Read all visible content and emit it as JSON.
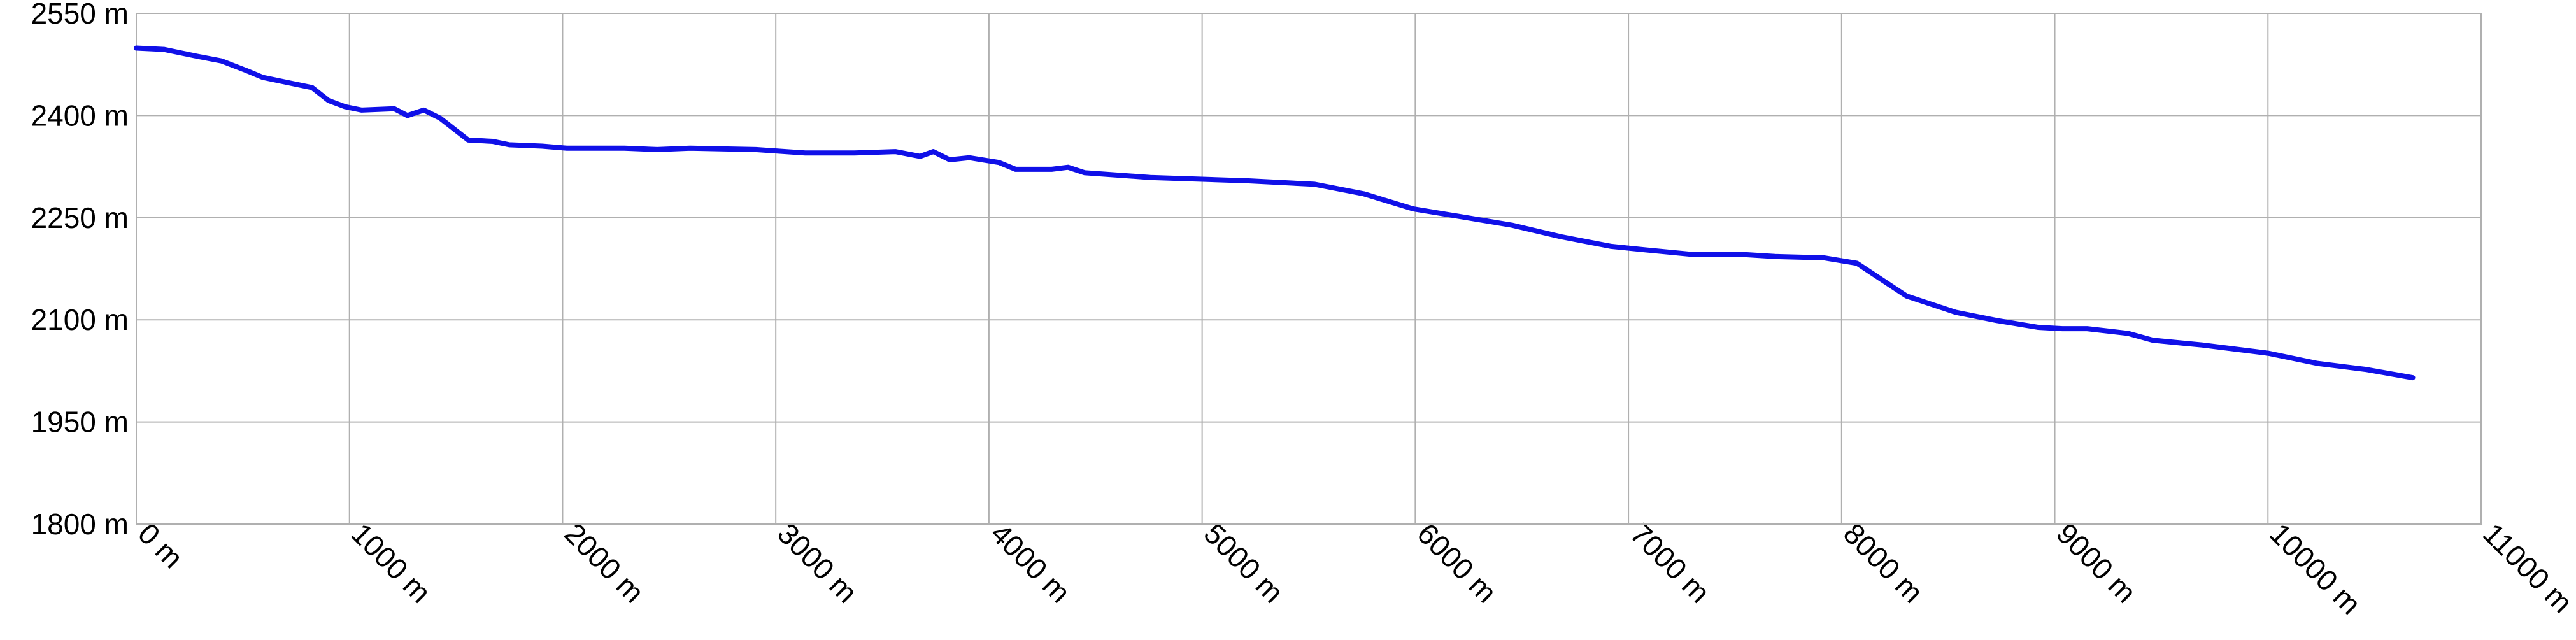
{
  "chart_data": {
    "type": "line",
    "x": [
      0,
      131,
      285,
      401,
      517,
      594,
      825,
      902,
      979,
      1056,
      1210,
      1272,
      1349,
      1426,
      1557,
      1673,
      1750,
      1904,
      2020,
      2290,
      2444,
      2598,
      2906,
      3138,
      3369,
      3561,
      3677,
      3739,
      3816,
      3908,
      4047,
      4125,
      4294,
      4371,
      4448,
      4757,
      5219,
      5528,
      5759,
      5990,
      6222,
      6453,
      6684,
      6916,
      7070,
      7301,
      7532,
      7687,
      7918,
      8072,
      8188,
      8304,
      8535,
      8728,
      8921,
      9036,
      9152,
      9345,
      9460,
      9692,
      10000,
      10232,
      10463,
      10679
    ],
    "series": [
      {
        "color": "#1010e8",
        "values": [
          2499,
          2497,
          2487,
          2480,
          2466,
          2456,
          2441,
          2422,
          2413,
          2408,
          2410,
          2400,
          2408,
          2396,
          2364,
          2362,
          2357,
          2355,
          2352,
          2352,
          2350,
          2352,
          2350,
          2345,
          2345,
          2347,
          2340,
          2347,
          2335,
          2338,
          2331,
          2321,
          2321,
          2324,
          2316,
          2309,
          2304,
          2299,
          2285,
          2263,
          2251,
          2239,
          2222,
          2208,
          2203,
          2196,
          2196,
          2193,
          2191,
          2183,
          2159,
          2135,
          2111,
          2099,
          2089,
          2087,
          2087,
          2080,
          2070,
          2063,
          2051,
          2036,
          2027,
          2015
        ]
      }
    ],
    "xlim": [
      0,
      11000
    ],
    "xticks": [
      {
        "value": 0,
        "label": "0 m"
      },
      {
        "value": 1000,
        "label": "1000 m"
      },
      {
        "value": 2000,
        "label": "2000 m"
      },
      {
        "value": 3000,
        "label": "3000 m"
      },
      {
        "value": 4000,
        "label": "4000 m"
      },
      {
        "value": 5000,
        "label": "5000 m"
      },
      {
        "value": 6000,
        "label": "6000 m"
      },
      {
        "value": 7000,
        "label": "7000 m"
      },
      {
        "value": 8000,
        "label": "8000 m"
      },
      {
        "value": 9000,
        "label": "9000 m"
      },
      {
        "value": 10000,
        "label": "10000 m"
      },
      {
        "value": 11000,
        "label": "11000 m"
      }
    ],
    "ylim": [
      1800,
      2550
    ],
    "yticks": [
      {
        "value": 1800,
        "label": "1800 m"
      },
      {
        "value": 1950,
        "label": "1950 m"
      },
      {
        "value": 2100,
        "label": "2100 m"
      },
      {
        "value": 2250,
        "label": "2250 m"
      },
      {
        "value": 2400,
        "label": "2400 m"
      },
      {
        "value": 2550,
        "label": "2550 m"
      }
    ],
    "grid": true
  }
}
